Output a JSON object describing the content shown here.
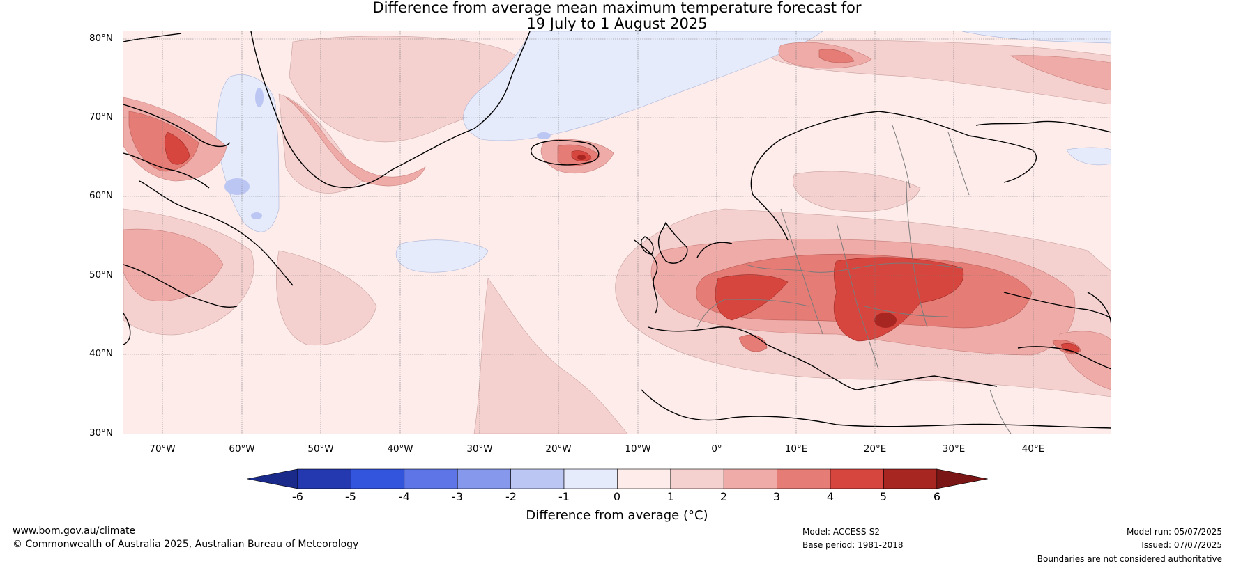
{
  "title": {
    "line1": "Difference from average mean maximum temperature forecast for",
    "line2": "19 July to 1 August 2025"
  },
  "map": {
    "lat_labels": [
      "80°N",
      "70°N",
      "60°N",
      "50°N",
      "40°N",
      "30°N"
    ],
    "lon_labels": [
      "70°W",
      "60°W",
      "50°W",
      "40°W",
      "30°W",
      "20°W",
      "10°W",
      "0°",
      "10°E",
      "20°E",
      "30°E",
      "40°E"
    ],
    "colors": {
      "background_0_1": "#fdecea",
      "coastline": "#000000",
      "borders": "#7a7a7a",
      "gridlines": "#777777"
    }
  },
  "colorbar": {
    "title": "Difference from average (°C)",
    "ticks": [
      "-6",
      "-5",
      "-4",
      "-3",
      "-2",
      "-1",
      "0",
      "1",
      "2",
      "3",
      "4",
      "5",
      "6"
    ],
    "colors": [
      "#1a2a8a",
      "#2438b0",
      "#3354dc",
      "#5d75e6",
      "#8698ec",
      "#bcc6f3",
      "#e6ebfb",
      "#fdecea",
      "#f4d0cf",
      "#eeaba8",
      "#e57c76",
      "#d7463e",
      "#a82622",
      "#7a1716"
    ]
  },
  "footer": {
    "website": "www.bom.gov.au/climate",
    "copyright": "© Commonwealth of Australia 2025, Australian Bureau of Meteorology",
    "model": "Model: ACCESS-S2",
    "base_period": "Base period: 1981-2018",
    "model_run": "Model run: 05/07/2025",
    "issued": "Issued: 07/07/2025",
    "disclaimer": "Boundaries are not considered authoritative"
  }
}
